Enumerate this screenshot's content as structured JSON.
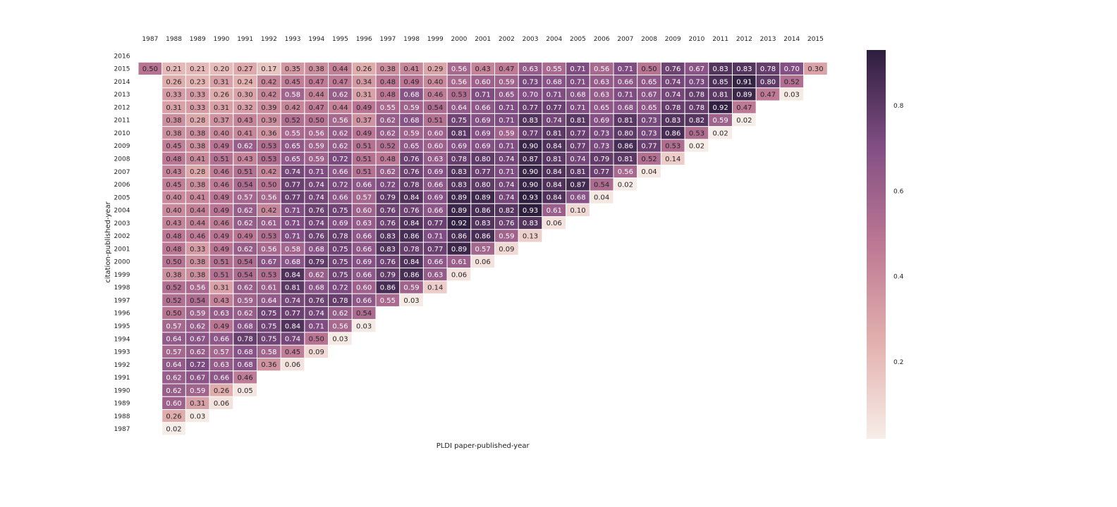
{
  "chart_data": {
    "type": "heatmap",
    "xlabel": "PLDI paper-published-year",
    "ylabel": "citation-published-year",
    "x_categories": [
      "1987",
      "1988",
      "1989",
      "1990",
      "1991",
      "1992",
      "1993",
      "1994",
      "1995",
      "1996",
      "1997",
      "1998",
      "1999",
      "2000",
      "2001",
      "2002",
      "2003",
      "2004",
      "2005",
      "2006",
      "2007",
      "2008",
      "2009",
      "2010",
      "2011",
      "2012",
      "2013",
      "2014",
      "2015"
    ],
    "y_categories": [
      "2016",
      "2015",
      "2014",
      "2013",
      "2012",
      "2011",
      "2010",
      "2009",
      "2008",
      "2007",
      "2006",
      "2005",
      "2004",
      "2003",
      "2002",
      "2001",
      "2000",
      "1999",
      "1998",
      "1997",
      "1996",
      "1995",
      "1994",
      "1993",
      "1992",
      "1991",
      "1990",
      "1989",
      "1988",
      "1987"
    ],
    "values": [
      [
        null,
        null,
        null,
        null,
        null,
        null,
        null,
        null,
        null,
        null,
        null,
        null,
        null,
        null,
        null,
        null,
        null,
        null,
        null,
        null,
        null,
        null,
        null,
        null,
        null,
        null,
        null,
        null,
        null
      ],
      [
        0.5,
        0.21,
        0.21,
        0.2,
        0.27,
        0.17,
        0.35,
        0.38,
        0.44,
        0.26,
        0.38,
        0.41,
        0.29,
        0.56,
        0.43,
        0.47,
        0.63,
        0.55,
        0.71,
        0.56,
        0.71,
        0.5,
        0.76,
        0.67,
        0.83,
        0.83,
        0.78,
        0.7,
        0.3
      ],
      [
        null,
        0.26,
        0.23,
        0.31,
        0.24,
        0.42,
        0.45,
        0.47,
        0.47,
        0.34,
        0.48,
        0.49,
        0.4,
        0.56,
        0.6,
        0.59,
        0.73,
        0.68,
        0.71,
        0.63,
        0.66,
        0.65,
        0.74,
        0.73,
        0.85,
        0.91,
        0.8,
        0.52,
        null
      ],
      [
        null,
        0.33,
        0.33,
        0.26,
        0.3,
        0.42,
        0.58,
        0.44,
        0.62,
        0.31,
        0.48,
        0.68,
        0.46,
        0.53,
        0.71,
        0.65,
        0.7,
        0.71,
        0.68,
        0.63,
        0.71,
        0.67,
        0.74,
        0.78,
        0.81,
        0.89,
        0.47,
        0.03,
        null
      ],
      [
        null,
        0.31,
        0.33,
        0.31,
        0.32,
        0.39,
        0.42,
        0.47,
        0.44,
        0.49,
        0.55,
        0.59,
        0.54,
        0.64,
        0.66,
        0.71,
        0.77,
        0.77,
        0.71,
        0.65,
        0.68,
        0.65,
        0.78,
        0.78,
        0.92,
        0.47,
        null,
        null,
        null
      ],
      [
        null,
        0.38,
        0.28,
        0.37,
        0.43,
        0.39,
        0.52,
        0.5,
        0.56,
        0.37,
        0.62,
        0.68,
        0.51,
        0.75,
        0.69,
        0.71,
        0.83,
        0.74,
        0.81,
        0.69,
        0.81,
        0.73,
        0.83,
        0.82,
        0.59,
        0.02,
        null,
        null,
        null
      ],
      [
        null,
        0.38,
        0.38,
        0.4,
        0.41,
        0.36,
        0.55,
        0.56,
        0.62,
        0.49,
        0.62,
        0.59,
        0.6,
        0.81,
        0.69,
        0.59,
        0.77,
        0.81,
        0.77,
        0.73,
        0.8,
        0.73,
        0.86,
        0.53,
        0.02,
        null,
        null,
        null,
        null
      ],
      [
        null,
        0.45,
        0.38,
        0.49,
        0.62,
        0.53,
        0.65,
        0.59,
        0.62,
        0.51,
        0.52,
        0.65,
        0.6,
        0.69,
        0.69,
        0.71,
        0.9,
        0.84,
        0.77,
        0.73,
        0.86,
        0.77,
        0.53,
        0.02,
        null,
        null,
        null,
        null,
        null
      ],
      [
        null,
        0.48,
        0.41,
        0.51,
        0.43,
        0.53,
        0.65,
        0.59,
        0.72,
        0.51,
        0.48,
        0.76,
        0.63,
        0.78,
        0.8,
        0.74,
        0.87,
        0.81,
        0.74,
        0.79,
        0.81,
        0.52,
        0.14,
        null,
        null,
        null,
        null,
        null,
        null
      ],
      [
        null,
        0.43,
        0.28,
        0.46,
        0.51,
        0.42,
        0.74,
        0.71,
        0.66,
        0.51,
        0.62,
        0.76,
        0.69,
        0.83,
        0.77,
        0.71,
        0.9,
        0.84,
        0.81,
        0.77,
        0.56,
        0.04,
        null,
        null,
        null,
        null,
        null,
        null,
        null
      ],
      [
        null,
        0.45,
        0.38,
        0.46,
        0.54,
        0.5,
        0.77,
        0.74,
        0.72,
        0.66,
        0.72,
        0.78,
        0.66,
        0.83,
        0.8,
        0.74,
        0.9,
        0.84,
        0.87,
        0.54,
        0.02,
        null,
        null,
        null,
        null,
        null,
        null,
        null,
        null
      ],
      [
        null,
        0.4,
        0.41,
        0.49,
        0.57,
        0.56,
        0.77,
        0.74,
        0.66,
        0.57,
        0.79,
        0.84,
        0.69,
        0.89,
        0.89,
        0.74,
        0.93,
        0.84,
        0.68,
        0.04,
        null,
        null,
        null,
        null,
        null,
        null,
        null,
        null,
        null
      ],
      [
        null,
        0.4,
        0.44,
        0.49,
        0.62,
        0.42,
        0.71,
        0.76,
        0.75,
        0.6,
        0.76,
        0.76,
        0.66,
        0.89,
        0.86,
        0.82,
        0.93,
        0.61,
        0.1,
        null,
        null,
        null,
        null,
        null,
        null,
        null,
        null,
        null,
        null
      ],
      [
        null,
        0.43,
        0.44,
        0.46,
        0.62,
        0.61,
        0.71,
        0.74,
        0.69,
        0.63,
        0.76,
        0.84,
        0.77,
        0.92,
        0.83,
        0.76,
        0.83,
        0.06,
        null,
        null,
        null,
        null,
        null,
        null,
        null,
        null,
        null,
        null,
        null
      ],
      [
        null,
        0.48,
        0.46,
        0.49,
        0.49,
        0.53,
        0.71,
        0.76,
        0.78,
        0.66,
        0.83,
        0.86,
        0.71,
        0.86,
        0.86,
        0.59,
        0.13,
        null,
        null,
        null,
        null,
        null,
        null,
        null,
        null,
        null,
        null,
        null,
        null
      ],
      [
        null,
        0.48,
        0.33,
        0.49,
        0.62,
        0.56,
        0.58,
        0.68,
        0.75,
        0.66,
        0.83,
        0.78,
        0.77,
        0.89,
        0.57,
        0.09,
        null,
        null,
        null,
        null,
        null,
        null,
        null,
        null,
        null,
        null,
        null,
        null,
        null
      ],
      [
        null,
        0.5,
        0.38,
        0.51,
        0.54,
        0.67,
        0.68,
        0.79,
        0.75,
        0.69,
        0.76,
        0.84,
        0.66,
        0.61,
        0.06,
        null,
        null,
        null,
        null,
        null,
        null,
        null,
        null,
        null,
        null,
        null,
        null,
        null,
        null
      ],
      [
        null,
        0.38,
        0.38,
        0.51,
        0.54,
        0.53,
        0.84,
        0.62,
        0.75,
        0.66,
        0.79,
        0.86,
        0.63,
        0.06,
        null,
        null,
        null,
        null,
        null,
        null,
        null,
        null,
        null,
        null,
        null,
        null,
        null,
        null,
        null
      ],
      [
        null,
        0.52,
        0.56,
        0.31,
        0.62,
        0.61,
        0.81,
        0.68,
        0.72,
        0.6,
        0.86,
        0.59,
        0.14,
        null,
        null,
        null,
        null,
        null,
        null,
        null,
        null,
        null,
        null,
        null,
        null,
        null,
        null,
        null,
        null
      ],
      [
        null,
        0.52,
        0.54,
        0.43,
        0.59,
        0.64,
        0.74,
        0.76,
        0.78,
        0.66,
        0.55,
        0.03,
        null,
        null,
        null,
        null,
        null,
        null,
        null,
        null,
        null,
        null,
        null,
        null,
        null,
        null,
        null,
        null,
        null
      ],
      [
        null,
        0.5,
        0.59,
        0.63,
        0.62,
        0.75,
        0.77,
        0.74,
        0.62,
        0.54,
        null,
        null,
        null,
        null,
        null,
        null,
        null,
        null,
        null,
        null,
        null,
        null,
        null,
        null,
        null,
        null,
        null,
        null,
        null
      ],
      [
        null,
        0.57,
        0.62,
        0.49,
        0.68,
        0.75,
        0.84,
        0.71,
        0.56,
        0.03,
        null,
        null,
        null,
        null,
        null,
        null,
        null,
        null,
        null,
        null,
        null,
        null,
        null,
        null,
        null,
        null,
        null,
        null,
        null
      ],
      [
        null,
        0.64,
        0.67,
        0.66,
        0.78,
        0.75,
        0.74,
        0.5,
        0.03,
        null,
        null,
        null,
        null,
        null,
        null,
        null,
        null,
        null,
        null,
        null,
        null,
        null,
        null,
        null,
        null,
        null,
        null,
        null,
        null
      ],
      [
        null,
        0.57,
        0.62,
        0.57,
        0.68,
        0.58,
        0.45,
        0.09,
        null,
        null,
        null,
        null,
        null,
        null,
        null,
        null,
        null,
        null,
        null,
        null,
        null,
        null,
        null,
        null,
        null,
        null,
        null,
        null,
        null
      ],
      [
        null,
        0.64,
        0.72,
        0.63,
        0.68,
        0.36,
        0.06,
        null,
        null,
        null,
        null,
        null,
        null,
        null,
        null,
        null,
        null,
        null,
        null,
        null,
        null,
        null,
        null,
        null,
        null,
        null,
        null,
        null,
        null
      ],
      [
        null,
        0.62,
        0.67,
        0.66,
        0.46,
        null,
        null,
        null,
        null,
        null,
        null,
        null,
        null,
        null,
        null,
        null,
        null,
        null,
        null,
        null,
        null,
        null,
        null,
        null,
        null,
        null,
        null,
        null,
        null
      ],
      [
        null,
        0.62,
        0.59,
        0.26,
        0.05,
        null,
        null,
        null,
        null,
        null,
        null,
        null,
        null,
        null,
        null,
        null,
        null,
        null,
        null,
        null,
        null,
        null,
        null,
        null,
        null,
        null,
        null,
        null,
        null
      ],
      [
        null,
        0.6,
        0.31,
        0.06,
        null,
        null,
        null,
        null,
        null,
        null,
        null,
        null,
        null,
        null,
        null,
        null,
        null,
        null,
        null,
        null,
        null,
        null,
        null,
        null,
        null,
        null,
        null,
        null,
        null
      ],
      [
        null,
        0.26,
        0.03,
        null,
        null,
        null,
        null,
        null,
        null,
        null,
        null,
        null,
        null,
        null,
        null,
        null,
        null,
        null,
        null,
        null,
        null,
        null,
        null,
        null,
        null,
        null,
        null,
        null,
        null
      ],
      [
        null,
        0.02,
        null,
        null,
        null,
        null,
        null,
        null,
        null,
        null,
        null,
        null,
        null,
        null,
        null,
        null,
        null,
        null,
        null,
        null,
        null,
        null,
        null,
        null,
        null,
        null,
        null,
        null,
        null
      ]
    ],
    "value_range": [
      0.02,
      0.93
    ],
    "x_axis_position": "top",
    "grid": false,
    "colorbar": {
      "ticks": [
        0.2,
        0.4,
        0.6,
        0.8
      ],
      "tick_labels": [
        "0.2",
        "0.4",
        "0.6",
        "0.8"
      ],
      "placement": "right"
    },
    "colors": {
      "low": "#f7ede8",
      "mid_low": "#e2b0ae",
      "mid": "#bd7894",
      "mid_high": "#824f84",
      "high": "#2d1e3e",
      "grid_line": "#ffffff",
      "dark_text": "#262626",
      "light_text": "#ffffff"
    }
  }
}
